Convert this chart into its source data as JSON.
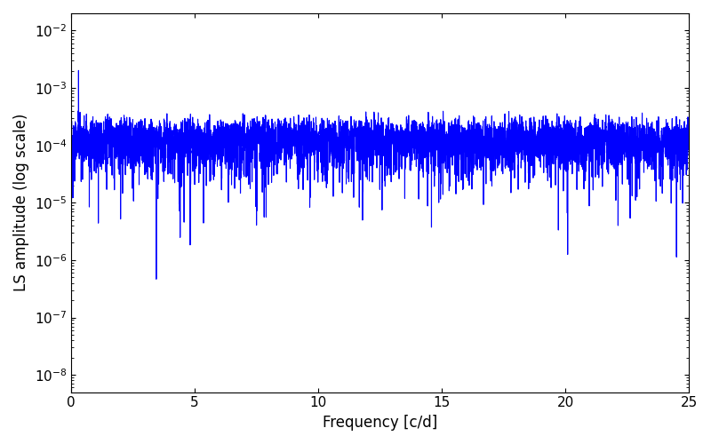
{
  "title": "",
  "xlabel": "Frequency [c/d]",
  "ylabel": "LS amplitude (log scale)",
  "line_color": "#0000FF",
  "line_width": 0.8,
  "xlim": [
    0,
    25
  ],
  "ylim": [
    5e-09,
    0.02
  ],
  "yscale": "log",
  "yticks": [
    1e-08,
    1e-07,
    1e-06,
    1e-05,
    0.0001,
    0.001,
    0.01
  ],
  "xticks": [
    0,
    5,
    10,
    15,
    20,
    25
  ],
  "figsize": [
    8.0,
    5.0
  ],
  "dpi": 100,
  "seed": 1234,
  "n_obs": 400,
  "t_span": 365.0,
  "freq_max": 25.0,
  "n_freq": 5000,
  "background_color": "#ffffff"
}
